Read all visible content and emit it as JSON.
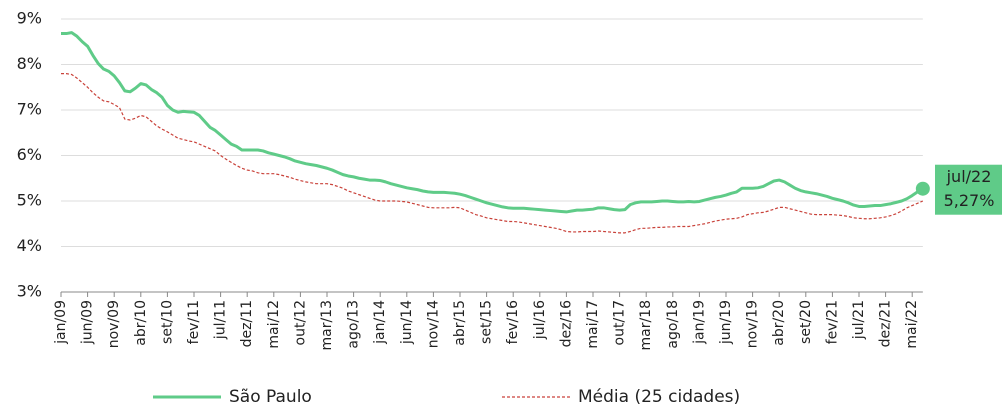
{
  "chart_data": {
    "type": "line",
    "categories": [
      "jan/09",
      null,
      null,
      null,
      null,
      "jun/09",
      null,
      null,
      null,
      null,
      "nov/09",
      null,
      null,
      null,
      null,
      "abr/10",
      null,
      null,
      null,
      null,
      "set/10",
      null,
      null,
      null,
      null,
      "fev/11",
      null,
      null,
      null,
      null,
      "jul/11",
      null,
      null,
      null,
      null,
      "dez/11",
      null,
      null,
      null,
      null,
      "mai/12",
      null,
      null,
      null,
      null,
      "out/12",
      null,
      null,
      null,
      null,
      "mar/13",
      null,
      null,
      null,
      null,
      "ago/13",
      null,
      null,
      null,
      null,
      "jan/14",
      null,
      null,
      null,
      null,
      "jun/14",
      null,
      null,
      null,
      null,
      "nov/14",
      null,
      null,
      null,
      null,
      "abr/15",
      null,
      null,
      null,
      null,
      "set/15",
      null,
      null,
      null,
      null,
      "fev/16",
      null,
      null,
      null,
      null,
      "jul/16",
      null,
      null,
      null,
      null,
      "dez/16",
      null,
      null,
      null,
      null,
      "mai/17",
      null,
      null,
      null,
      null,
      "out/17",
      null,
      null,
      null,
      null,
      "mar/18",
      null,
      null,
      null,
      null,
      "ago/18",
      null,
      null,
      null,
      null,
      "jan/19",
      null,
      null,
      null,
      null,
      "jun/19",
      null,
      null,
      null,
      null,
      "nov/19",
      null,
      null,
      null,
      null,
      "abr/20",
      null,
      null,
      null,
      null,
      "set/20",
      null,
      null,
      null,
      null,
      "fev/21",
      null,
      null,
      null,
      null,
      "jul/21",
      null,
      null,
      null,
      null,
      "dez/21",
      null,
      null,
      null,
      null,
      "mai/22",
      null,
      "jul/22"
    ],
    "series": [
      {
        "name": "São Paulo",
        "color": "#5fcb88",
        "dash": false,
        "values": [
          8.68,
          8.68,
          8.7,
          8.62,
          8.5,
          8.4,
          8.2,
          8.02,
          7.9,
          7.85,
          7.75,
          7.6,
          7.42,
          7.4,
          7.48,
          7.58,
          7.55,
          7.45,
          7.38,
          7.28,
          7.1,
          7.0,
          6.95,
          6.97,
          6.96,
          6.95,
          6.88,
          6.75,
          6.62,
          6.55,
          6.45,
          6.35,
          6.25,
          6.2,
          6.12,
          6.12,
          6.12,
          6.12,
          6.1,
          6.06,
          6.03,
          6.0,
          5.97,
          5.93,
          5.88,
          5.85,
          5.82,
          5.8,
          5.78,
          5.75,
          5.72,
          5.68,
          5.63,
          5.58,
          5.55,
          5.53,
          5.5,
          5.48,
          5.46,
          5.46,
          5.45,
          5.42,
          5.38,
          5.35,
          5.32,
          5.29,
          5.27,
          5.25,
          5.22,
          5.2,
          5.19,
          5.19,
          5.19,
          5.18,
          5.17,
          5.15,
          5.12,
          5.08,
          5.04,
          5.0,
          4.96,
          4.93,
          4.9,
          4.87,
          4.85,
          4.84,
          4.84,
          4.84,
          4.83,
          4.82,
          4.81,
          4.8,
          4.79,
          4.78,
          4.77,
          4.76,
          4.78,
          4.8,
          4.8,
          4.81,
          4.82,
          4.85,
          4.85,
          4.83,
          4.81,
          4.8,
          4.81,
          4.92,
          4.96,
          4.98,
          4.98,
          4.98,
          4.99,
          5.0,
          5.0,
          4.99,
          4.98,
          4.98,
          4.99,
          4.98,
          4.99,
          5.02,
          5.05,
          5.08,
          5.1,
          5.13,
          5.17,
          5.2,
          5.28,
          5.28,
          5.28,
          5.29,
          5.32,
          5.38,
          5.44,
          5.46,
          5.42,
          5.35,
          5.28,
          5.23,
          5.2,
          5.18,
          5.16,
          5.13,
          5.1,
          5.06,
          5.03,
          5.0,
          4.96,
          4.91,
          4.88,
          4.88,
          4.89,
          4.9,
          4.9,
          4.92,
          4.94,
          4.97,
          5.0,
          5.05,
          5.12,
          5.2,
          5.27
        ],
        "value_labels": [
          null,
          null,
          null,
          null,
          null,
          null,
          null,
          null,
          null,
          null,
          null,
          null,
          null,
          null,
          null,
          null,
          null,
          null,
          null,
          null,
          null,
          null,
          null,
          null,
          null,
          null,
          null,
          null,
          null,
          null,
          null,
          null,
          null,
          null,
          null,
          null,
          null,
          null,
          null,
          null,
          null,
          null,
          null,
          null,
          null,
          null,
          null,
          null,
          null,
          null,
          null,
          null,
          null,
          null,
          null,
          null,
          null,
          null,
          null,
          null,
          null,
          null,
          null,
          null,
          null,
          null,
          null,
          null,
          null,
          null,
          null,
          null,
          null,
          null,
          null,
          null,
          null,
          null,
          null,
          null,
          null,
          null,
          null,
          null,
          null,
          null,
          null,
          null,
          null,
          null,
          null,
          null,
          null,
          null,
          null,
          null,
          null,
          null,
          null,
          null,
          null,
          null,
          null,
          null,
          null,
          null,
          null,
          null,
          null,
          null,
          null,
          null,
          null,
          null,
          null,
          null,
          null,
          null,
          null,
          null,
          null,
          null,
          null,
          null,
          null,
          null,
          null,
          null,
          null,
          null,
          null,
          null,
          null,
          null,
          null,
          null,
          null,
          null,
          null,
          null,
          null,
          null,
          null,
          null,
          null,
          null,
          null,
          null,
          null,
          null,
          null,
          null,
          null,
          null,
          null,
          null,
          null,
          null,
          null,
          null,
          null,
          null,
          "5,27%"
        ]
      },
      {
        "name": "Média (25 cidades)",
        "color": "#c9423a",
        "dash": true,
        "values": [
          7.8,
          7.8,
          7.78,
          7.7,
          7.6,
          7.5,
          7.38,
          7.28,
          7.2,
          7.18,
          7.12,
          7.05,
          6.8,
          6.78,
          6.82,
          6.88,
          6.85,
          6.75,
          6.65,
          6.58,
          6.52,
          6.45,
          6.38,
          6.35,
          6.32,
          6.3,
          6.25,
          6.2,
          6.15,
          6.1,
          6.0,
          5.92,
          5.85,
          5.78,
          5.72,
          5.68,
          5.66,
          5.62,
          5.6,
          5.6,
          5.6,
          5.58,
          5.55,
          5.52,
          5.48,
          5.45,
          5.42,
          5.4,
          5.38,
          5.38,
          5.38,
          5.36,
          5.32,
          5.28,
          5.22,
          5.18,
          5.14,
          5.1,
          5.06,
          5.02,
          5.0,
          5.0,
          5.0,
          5.0,
          4.99,
          4.98,
          4.95,
          4.92,
          4.89,
          4.86,
          4.85,
          4.85,
          4.85,
          4.85,
          4.86,
          4.85,
          4.8,
          4.75,
          4.7,
          4.67,
          4.63,
          4.61,
          4.59,
          4.57,
          4.55,
          4.55,
          4.54,
          4.52,
          4.5,
          4.48,
          4.46,
          4.44,
          4.42,
          4.4,
          4.37,
          4.33,
          4.32,
          4.32,
          4.33,
          4.33,
          4.33,
          4.34,
          4.33,
          4.32,
          4.31,
          4.3,
          4.3,
          4.33,
          4.37,
          4.4,
          4.4,
          4.41,
          4.42,
          4.42,
          4.43,
          4.43,
          4.44,
          4.44,
          4.44,
          4.46,
          4.48,
          4.5,
          4.53,
          4.56,
          4.58,
          4.6,
          4.61,
          4.62,
          4.65,
          4.7,
          4.72,
          4.74,
          4.75,
          4.78,
          4.82,
          4.86,
          4.86,
          4.83,
          4.8,
          4.77,
          4.74,
          4.71,
          4.7,
          4.7,
          4.7,
          4.7,
          4.69,
          4.68,
          4.66,
          4.63,
          4.62,
          4.61,
          4.61,
          4.62,
          4.63,
          4.65,
          4.68,
          4.72,
          4.78,
          4.85,
          4.9,
          4.95,
          5.0
        ]
      }
    ],
    "ylim": [
      3,
      9
    ],
    "yticks": [
      {
        "value": 3,
        "label": "3%"
      },
      {
        "value": 4,
        "label": "4%"
      },
      {
        "value": 5,
        "label": "5%"
      },
      {
        "value": 6,
        "label": "6%"
      },
      {
        "value": 7,
        "label": "7%"
      },
      {
        "value": 8,
        "label": "8%"
      },
      {
        "value": 9,
        "label": "9%"
      }
    ],
    "grid": true
  }
}
